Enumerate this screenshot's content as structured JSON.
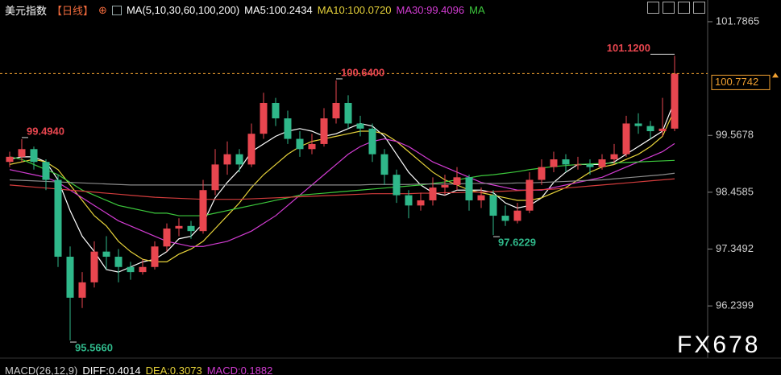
{
  "chart_data": {
    "type": "candlestick",
    "title": "美元指数",
    "period": "【日线】",
    "indicator": "MA(5,10,30,60,100,200)",
    "up_color": "#e8464f",
    "down_color": "#2fb88a",
    "ylim": [
      95.3,
      102.21
    ],
    "yticks": [
      {
        "value": 101.7865,
        "label": "101.7865"
      },
      {
        "value": 99.5678,
        "label": "99.5678"
      },
      {
        "value": 98.4585,
        "label": "98.4585"
      },
      {
        "value": 97.3492,
        "label": "97.3492"
      },
      {
        "value": 96.2399,
        "label": "96.2399"
      }
    ],
    "ohlc": [
      [
        99.05,
        99.25,
        98.95,
        99.15
      ],
      [
        99.15,
        99.494,
        99.05,
        99.3
      ],
      [
        99.3,
        99.35,
        98.9,
        99.05
      ],
      [
        99.05,
        99.1,
        98.5,
        98.7
      ],
      [
        98.7,
        98.8,
        97.0,
        97.2
      ],
      [
        97.2,
        97.4,
        95.566,
        96.4
      ],
      [
        96.4,
        96.9,
        96.2,
        96.7
      ],
      [
        96.7,
        97.5,
        96.6,
        97.3
      ],
      [
        97.3,
        97.6,
        96.95,
        97.2
      ],
      [
        97.2,
        97.35,
        96.7,
        97.0
      ],
      [
        97.0,
        97.1,
        96.75,
        96.9
      ],
      [
        96.9,
        97.15,
        96.85,
        97.0
      ],
      [
        97.0,
        97.5,
        96.95,
        97.4
      ],
      [
        97.4,
        97.85,
        97.3,
        97.75
      ],
      [
        97.75,
        97.95,
        97.6,
        97.8
      ],
      [
        97.8,
        97.9,
        97.55,
        97.7
      ],
      [
        97.7,
        98.7,
        97.65,
        98.5
      ],
      [
        98.5,
        99.3,
        98.4,
        99.0
      ],
      [
        99.0,
        99.45,
        98.8,
        99.2
      ],
      [
        99.2,
        99.3,
        98.85,
        99.0
      ],
      [
        99.0,
        99.8,
        98.95,
        99.6
      ],
      [
        99.6,
        100.4,
        99.5,
        100.2
      ],
      [
        100.2,
        100.3,
        99.75,
        99.9
      ],
      [
        99.9,
        100.05,
        99.4,
        99.5
      ],
      [
        99.5,
        99.65,
        99.15,
        99.3
      ],
      [
        99.3,
        99.6,
        99.2,
        99.4
      ],
      [
        99.4,
        100.1,
        99.35,
        99.9
      ],
      [
        99.9,
        100.64,
        99.8,
        100.2
      ],
      [
        100.2,
        100.35,
        99.7,
        99.8
      ],
      [
        99.8,
        99.95,
        99.55,
        99.7
      ],
      [
        99.7,
        99.8,
        99.05,
        99.2
      ],
      [
        99.2,
        99.3,
        98.6,
        98.8
      ],
      [
        98.8,
        98.9,
        98.25,
        98.4
      ],
      [
        98.4,
        98.5,
        97.95,
        98.2
      ],
      [
        98.2,
        98.45,
        98.1,
        98.3
      ],
      [
        98.3,
        98.75,
        98.2,
        98.55
      ],
      [
        98.55,
        98.8,
        98.4,
        98.6
      ],
      [
        98.6,
        98.95,
        98.5,
        98.75
      ],
      [
        98.75,
        98.8,
        98.1,
        98.3
      ],
      [
        98.3,
        98.55,
        98.15,
        98.4
      ],
      [
        98.4,
        98.5,
        97.6229,
        98.0
      ],
      [
        98.0,
        98.2,
        97.8,
        97.9
      ],
      [
        97.9,
        98.25,
        97.85,
        98.1
      ],
      [
        98.1,
        98.85,
        98.05,
        98.7
      ],
      [
        98.7,
        99.1,
        98.6,
        98.95
      ],
      [
        98.95,
        99.25,
        98.85,
        99.1
      ],
      [
        99.1,
        99.2,
        98.85,
        99.0
      ],
      [
        99.0,
        99.15,
        98.9,
        99.0
      ],
      [
        99.0,
        99.1,
        98.8,
        98.95
      ],
      [
        98.95,
        99.2,
        98.9,
        99.1
      ],
      [
        99.1,
        99.4,
        99.0,
        99.2
      ],
      [
        99.2,
        99.95,
        99.15,
        99.8
      ],
      [
        99.8,
        100.0,
        99.6,
        99.75
      ],
      [
        99.75,
        99.85,
        99.5,
        99.65
      ],
      [
        99.65,
        100.3,
        99.55,
        99.7
      ],
      [
        99.7,
        101.12,
        99.65,
        100.7742
      ]
    ],
    "series": [
      {
        "name": "MA5:100.2434",
        "color": "#ffffff",
        "values": [
          99.1,
          99.15,
          99.15,
          99.05,
          98.7,
          98.1,
          97.6,
          97.3,
          96.95,
          96.9,
          97.0,
          97.1,
          97.15,
          97.3,
          97.55,
          97.6,
          97.85,
          98.35,
          98.65,
          98.9,
          99.25,
          99.4,
          99.55,
          99.65,
          99.7,
          99.65,
          99.55,
          99.6,
          99.7,
          99.8,
          99.75,
          99.55,
          99.2,
          98.85,
          98.6,
          98.45,
          98.4,
          98.5,
          98.5,
          98.5,
          98.45,
          98.25,
          98.15,
          98.2,
          98.35,
          98.65,
          98.85,
          99.0,
          99.0,
          99.0,
          99.05,
          99.2,
          99.35,
          99.5,
          99.65,
          100.2434
        ]
      },
      {
        "name": "MA10:100.0720",
        "color": "#e6d23a",
        "values": [
          99.0,
          99.05,
          99.1,
          99.05,
          98.9,
          98.6,
          98.3,
          98.0,
          97.8,
          97.5,
          97.3,
          97.15,
          97.1,
          97.1,
          97.25,
          97.35,
          97.5,
          97.75,
          98.0,
          98.25,
          98.55,
          98.8,
          99.0,
          99.2,
          99.35,
          99.45,
          99.5,
          99.55,
          99.6,
          99.65,
          99.65,
          99.6,
          99.45,
          99.25,
          99.05,
          98.85,
          98.7,
          98.6,
          98.5,
          98.45,
          98.4,
          98.35,
          98.3,
          98.3,
          98.35,
          98.45,
          98.55,
          98.7,
          98.85,
          98.95,
          99.0,
          99.1,
          99.2,
          99.35,
          99.55,
          100.072
        ]
      },
      {
        "name": "MA30:99.4096",
        "color": "#d23cd2",
        "values": [
          98.9,
          98.85,
          98.8,
          98.75,
          98.65,
          98.5,
          98.35,
          98.2,
          98.05,
          97.9,
          97.8,
          97.7,
          97.6,
          97.5,
          97.45,
          97.4,
          97.4,
          97.45,
          97.5,
          97.6,
          97.7,
          97.85,
          98.0,
          98.2,
          98.4,
          98.6,
          98.8,
          99.0,
          99.2,
          99.35,
          99.45,
          99.5,
          99.45,
          99.35,
          99.2,
          99.05,
          98.95,
          98.85,
          98.75,
          98.65,
          98.6,
          98.55,
          98.5,
          98.5,
          98.5,
          98.55,
          98.6,
          98.65,
          98.7,
          98.75,
          98.85,
          98.95,
          99.05,
          99.15,
          99.25,
          99.4096
        ]
      },
      {
        "name": "MA",
        "color": "#3cc83c",
        "values": [
          99.15,
          99.1,
          99.0,
          98.9,
          98.8,
          98.65,
          98.5,
          98.4,
          98.3,
          98.2,
          98.15,
          98.1,
          98.05,
          98.05,
          98.0,
          98.0,
          98.0,
          98.05,
          98.1,
          98.15,
          98.2,
          98.25,
          98.3,
          98.35,
          98.4,
          98.42,
          98.44,
          98.46,
          98.48,
          98.5,
          98.52,
          98.54,
          98.56,
          98.58,
          98.6,
          98.63,
          98.66,
          98.7,
          98.74,
          98.78,
          98.8,
          98.83,
          98.86,
          98.9,
          98.93,
          98.96,
          98.98,
          99.0,
          99.01,
          99.02,
          99.03,
          99.04,
          99.05,
          99.06,
          99.07,
          99.08
        ]
      },
      {
        "color": "#d23c3c",
        "values": [
          98.6,
          98.58,
          98.56,
          98.54,
          98.52,
          98.5,
          98.48,
          98.46,
          98.44,
          98.42,
          98.4,
          98.38,
          98.36,
          98.35,
          98.34,
          98.33,
          98.32,
          98.32,
          98.32,
          98.32,
          98.33,
          98.34,
          98.35,
          98.36,
          98.37,
          98.38,
          98.39,
          98.4,
          98.41,
          98.42,
          98.43,
          98.43,
          98.43,
          98.43,
          98.44,
          98.44,
          98.45,
          98.45,
          98.46,
          98.46,
          98.47,
          98.48,
          98.49,
          98.5,
          98.51,
          98.52,
          98.54,
          98.56,
          98.58,
          98.6,
          98.62,
          98.64,
          98.66,
          98.68,
          98.7,
          98.72
        ]
      },
      {
        "color": "#8c8c8c",
        "values": [
          98.7,
          98.69,
          98.68,
          98.67,
          98.66,
          98.65,
          98.64,
          98.63,
          98.62,
          98.61,
          98.6,
          98.6,
          98.6,
          98.6,
          98.6,
          98.6,
          98.6,
          98.6,
          98.6,
          98.6,
          98.6,
          98.6,
          98.6,
          98.6,
          98.6,
          98.6,
          98.6,
          98.6,
          98.6,
          98.6,
          98.61,
          98.61,
          98.61,
          98.61,
          98.62,
          98.62,
          98.62,
          98.62,
          98.63,
          98.63,
          98.63,
          98.63,
          98.64,
          98.64,
          98.65,
          98.66,
          98.67,
          98.68,
          98.69,
          98.7,
          98.72,
          98.74,
          98.76,
          98.78,
          98.8,
          98.83
        ]
      }
    ],
    "extremes": [
      {
        "value": 101.12,
        "label": "101.1200"
      },
      {
        "value": 100.64,
        "label": "100.6400"
      },
      {
        "value": 99.494,
        "label": "99.4940"
      },
      {
        "value": 95.566,
        "label": "95.5660"
      },
      {
        "value": 97.6229,
        "label": "97.6229"
      }
    ],
    "last_price": {
      "value": 100.7742,
      "label": "100.7742"
    },
    "last_color": "#f0a030",
    "macd_labels": [
      {
        "text": "MACD(26,12,9)",
        "color": "#cccccc"
      },
      {
        "text": "DIFF:0.4014",
        "color": "#ffffff"
      },
      {
        "text": "DEA:0.3073",
        "color": "#e6d23a"
      },
      {
        "text": "MACD:0.1882",
        "color": "#d23cd2"
      }
    ],
    "watermark": "FX678"
  }
}
